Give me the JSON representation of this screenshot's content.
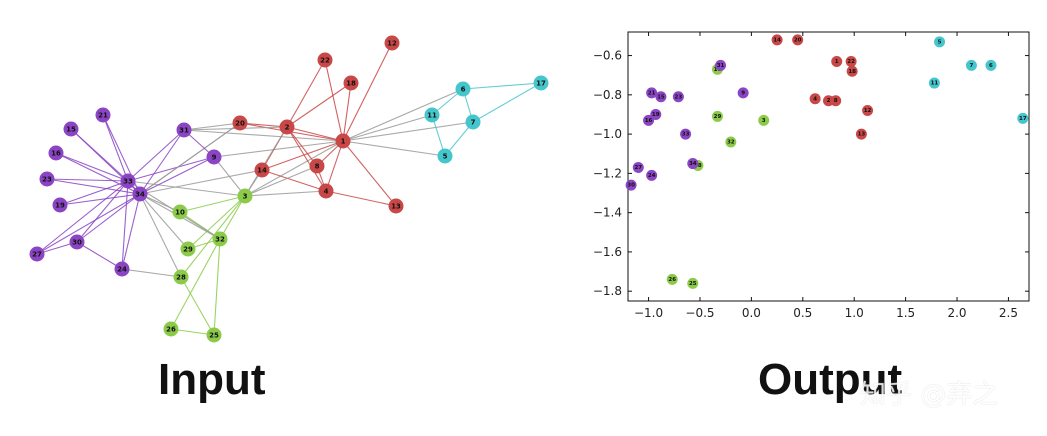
{
  "captions": {
    "input": "Input",
    "output": "Output"
  },
  "watermark": "知乎 @弃之",
  "colors": {
    "red": "#c94747",
    "purple": "#8a44c4",
    "cyan": "#45c6cc",
    "green": "#8ccb4a"
  },
  "graph": {
    "nodes": [
      {
        "id": "1",
        "group": "red"
      },
      {
        "id": "2",
        "group": "red"
      },
      {
        "id": "4",
        "group": "red"
      },
      {
        "id": "8",
        "group": "red"
      },
      {
        "id": "12",
        "group": "red"
      },
      {
        "id": "13",
        "group": "red"
      },
      {
        "id": "14",
        "group": "red"
      },
      {
        "id": "18",
        "group": "red"
      },
      {
        "id": "20",
        "group": "red"
      },
      {
        "id": "22",
        "group": "red"
      },
      {
        "id": "5",
        "group": "cyan"
      },
      {
        "id": "6",
        "group": "cyan"
      },
      {
        "id": "7",
        "group": "cyan"
      },
      {
        "id": "11",
        "group": "cyan"
      },
      {
        "id": "17",
        "group": "cyan"
      },
      {
        "id": "3",
        "group": "green"
      },
      {
        "id": "10",
        "group": "green"
      },
      {
        "id": "25",
        "group": "green"
      },
      {
        "id": "26",
        "group": "green"
      },
      {
        "id": "28",
        "group": "green"
      },
      {
        "id": "29",
        "group": "green"
      },
      {
        "id": "32",
        "group": "green"
      },
      {
        "id": "9",
        "group": "purple"
      },
      {
        "id": "15",
        "group": "purple"
      },
      {
        "id": "16",
        "group": "purple"
      },
      {
        "id": "19",
        "group": "purple"
      },
      {
        "id": "21",
        "group": "purple"
      },
      {
        "id": "23",
        "group": "purple"
      },
      {
        "id": "24",
        "group": "purple"
      },
      {
        "id": "27",
        "group": "purple"
      },
      {
        "id": "30",
        "group": "purple"
      },
      {
        "id": "31",
        "group": "purple"
      },
      {
        "id": "33",
        "group": "purple"
      },
      {
        "id": "34",
        "group": "purple"
      }
    ],
    "edges": [
      [
        "1",
        "2"
      ],
      [
        "1",
        "4"
      ],
      [
        "1",
        "8"
      ],
      [
        "1",
        "12"
      ],
      [
        "1",
        "13"
      ],
      [
        "1",
        "14"
      ],
      [
        "1",
        "18"
      ],
      [
        "1",
        "20"
      ],
      [
        "1",
        "22"
      ],
      [
        "1",
        "3"
      ],
      [
        "1",
        "9"
      ],
      [
        "1",
        "5"
      ],
      [
        "1",
        "6"
      ],
      [
        "1",
        "7"
      ],
      [
        "1",
        "11"
      ],
      [
        "1",
        "31"
      ],
      [
        "2",
        "4"
      ],
      [
        "2",
        "8"
      ],
      [
        "2",
        "14"
      ],
      [
        "2",
        "18"
      ],
      [
        "2",
        "20"
      ],
      [
        "2",
        "22"
      ],
      [
        "2",
        "3"
      ],
      [
        "2",
        "31"
      ],
      [
        "4",
        "8"
      ],
      [
        "4",
        "14"
      ],
      [
        "4",
        "3"
      ],
      [
        "4",
        "13"
      ],
      [
        "8",
        "3"
      ],
      [
        "14",
        "3"
      ],
      [
        "14",
        "34"
      ],
      [
        "3",
        "32"
      ],
      [
        "20",
        "34"
      ],
      [
        "5",
        "7"
      ],
      [
        "5",
        "11"
      ],
      [
        "6",
        "7"
      ],
      [
        "6",
        "11"
      ],
      [
        "6",
        "17"
      ],
      [
        "7",
        "17"
      ],
      [
        "3",
        "10"
      ],
      [
        "3",
        "28"
      ],
      [
        "3",
        "29"
      ],
      [
        "3",
        "33"
      ],
      [
        "10",
        "34"
      ],
      [
        "10",
        "32"
      ],
      [
        "32",
        "25"
      ],
      [
        "32",
        "26"
      ],
      [
        "32",
        "29"
      ],
      [
        "32",
        "33"
      ],
      [
        "32",
        "34"
      ],
      [
        "25",
        "26"
      ],
      [
        "25",
        "28"
      ],
      [
        "28",
        "34"
      ],
      [
        "24",
        "28"
      ],
      [
        "29",
        "34"
      ],
      [
        "33",
        "34"
      ],
      [
        "33",
        "9"
      ],
      [
        "33",
        "15"
      ],
      [
        "33",
        "16"
      ],
      [
        "33",
        "19"
      ],
      [
        "33",
        "21"
      ],
      [
        "33",
        "23"
      ],
      [
        "33",
        "24"
      ],
      [
        "33",
        "27"
      ],
      [
        "33",
        "30"
      ],
      [
        "33",
        "31"
      ],
      [
        "34",
        "9"
      ],
      [
        "34",
        "15"
      ],
      [
        "34",
        "16"
      ],
      [
        "34",
        "19"
      ],
      [
        "34",
        "21"
      ],
      [
        "34",
        "23"
      ],
      [
        "34",
        "24"
      ],
      [
        "34",
        "27"
      ],
      [
        "34",
        "30"
      ],
      [
        "34",
        "31"
      ],
      [
        "34",
        "20"
      ],
      [
        "9",
        "31"
      ],
      [
        "9",
        "3"
      ],
      [
        "31",
        "20"
      ],
      [
        "24",
        "30"
      ],
      [
        "30",
        "27"
      ]
    ]
  },
  "chart_data": {
    "type": "scatter",
    "xlim": [
      -1.2,
      2.7
    ],
    "ylim": [
      -1.85,
      -0.48
    ],
    "x_ticks": [
      -1.0,
      -0.5,
      0.0,
      0.5,
      1.0,
      1.5,
      2.0,
      2.5
    ],
    "x_tick_labels": [
      "−1.0",
      "−0.5",
      "0.0",
      "0.5",
      "1.0",
      "1.5",
      "2.0",
      "2.5"
    ],
    "y_ticks": [
      -0.6,
      -0.8,
      -1.0,
      -1.2,
      -1.4,
      -1.6,
      -1.8
    ],
    "y_tick_labels": [
      "−0.6",
      "−0.8",
      "−1.0",
      "−1.2",
      "−1.4",
      "−1.6",
      "−1.8"
    ],
    "grid": false,
    "points": [
      {
        "label": "14",
        "x": 0.25,
        "y": -0.52,
        "group": "red"
      },
      {
        "label": "20",
        "x": 0.45,
        "y": -0.52,
        "group": "red"
      },
      {
        "label": "1",
        "x": 0.83,
        "y": -0.63,
        "group": "red"
      },
      {
        "label": "22",
        "x": 0.97,
        "y": -0.63,
        "group": "red"
      },
      {
        "label": "18",
        "x": 0.98,
        "y": -0.68,
        "group": "red"
      },
      {
        "label": "4",
        "x": 0.62,
        "y": -0.82,
        "group": "red"
      },
      {
        "label": "2",
        "x": 0.75,
        "y": -0.83,
        "group": "red"
      },
      {
        "label": "8",
        "x": 0.82,
        "y": -0.83,
        "group": "red"
      },
      {
        "label": "12",
        "x": 1.13,
        "y": -0.88,
        "group": "red"
      },
      {
        "label": "13",
        "x": 1.07,
        "y": -1.0,
        "group": "red"
      },
      {
        "label": "5",
        "x": 1.83,
        "y": -0.53,
        "group": "cyan"
      },
      {
        "label": "7",
        "x": 2.14,
        "y": -0.65,
        "group": "cyan"
      },
      {
        "label": "6",
        "x": 2.33,
        "y": -0.65,
        "group": "cyan"
      },
      {
        "label": "11",
        "x": 1.78,
        "y": -0.74,
        "group": "cyan"
      },
      {
        "label": "17",
        "x": 2.64,
        "y": -0.92,
        "group": "cyan"
      },
      {
        "label": "10",
        "x": -0.33,
        "y": -0.67,
        "group": "green"
      },
      {
        "label": "29",
        "x": -0.33,
        "y": -0.91,
        "group": "green"
      },
      {
        "label": "3",
        "x": 0.12,
        "y": -0.93,
        "group": "green"
      },
      {
        "label": "32",
        "x": -0.2,
        "y": -1.04,
        "group": "green"
      },
      {
        "label": "28",
        "x": -0.52,
        "y": -1.16,
        "group": "green"
      },
      {
        "label": "26",
        "x": -0.77,
        "y": -1.74,
        "group": "green"
      },
      {
        "label": "25",
        "x": -0.57,
        "y": -1.76,
        "group": "green"
      },
      {
        "label": "31",
        "x": -0.3,
        "y": -0.65,
        "group": "purple"
      },
      {
        "label": "9",
        "x": -0.08,
        "y": -0.79,
        "group": "purple"
      },
      {
        "label": "21",
        "x": -0.97,
        "y": -0.79,
        "group": "purple"
      },
      {
        "label": "15",
        "x": -0.88,
        "y": -0.81,
        "group": "purple"
      },
      {
        "label": "23",
        "x": -0.71,
        "y": -0.81,
        "group": "purple"
      },
      {
        "label": "19",
        "x": -0.93,
        "y": -0.9,
        "group": "purple"
      },
      {
        "label": "16",
        "x": -1.0,
        "y": -0.93,
        "group": "purple"
      },
      {
        "label": "33",
        "x": -0.64,
        "y": -1.0,
        "group": "purple"
      },
      {
        "label": "34",
        "x": -0.57,
        "y": -1.15,
        "group": "purple"
      },
      {
        "label": "27",
        "x": -1.1,
        "y": -1.17,
        "group": "purple"
      },
      {
        "label": "24",
        "x": -0.97,
        "y": -1.21,
        "group": "purple"
      },
      {
        "label": "30",
        "x": -1.17,
        "y": -1.26,
        "group": "purple"
      }
    ]
  }
}
